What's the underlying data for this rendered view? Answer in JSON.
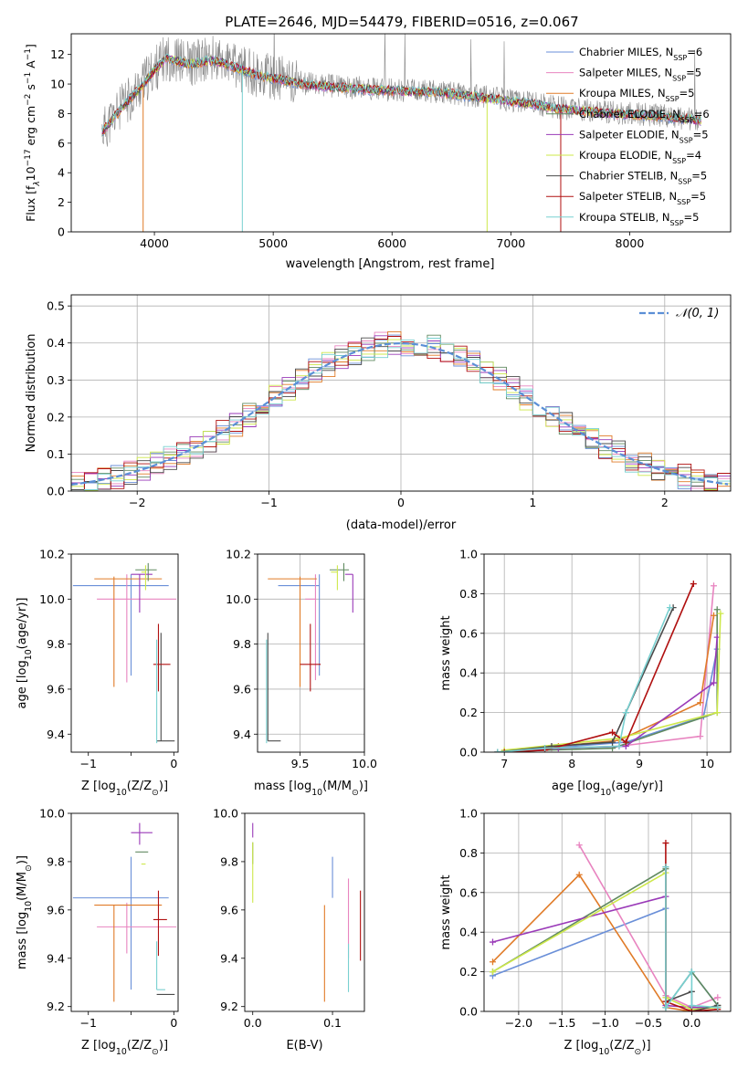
{
  "figure_title": "PLATE=2646, MJD=54479, FIBERID=0516, z=0.067",
  "colors": {
    "cm": "#6a8fd8",
    "sm": "#e884c0",
    "km": "#e07b28",
    "ce": "#608a60",
    "se": "#9a3ab8",
    "ke": "#cde84a",
    "cs": "#4a4a4a",
    "ss": "#b01010",
    "ks": "#78d0d0",
    "gauss": "#5b8fd6",
    "grid": "#b0b0b0"
  },
  "chart_data": [
    {
      "id": "spectrum",
      "type": "line",
      "title": "",
      "xlabel": "wavelength [Angstrom, rest frame]",
      "ylabel_parts": [
        "Flux [f",
        "λ",
        "10",
        "−17",
        " erg cm",
        "−2",
        " s",
        "−1",
        " A",
        "−1",
        "]"
      ],
      "xlim": [
        3300,
        8850
      ],
      "ylim": [
        0,
        13.4
      ],
      "xticks": [
        4000,
        5000,
        6000,
        7000,
        8000
      ],
      "yticks": [
        0,
        2,
        4,
        6,
        8,
        10,
        12
      ],
      "grid": false,
      "legend_position": "top-right",
      "legend": [
        {
          "key": "cm",
          "label": "Chabrier MILES, N",
          "sub": "SSP",
          "tail": "=6"
        },
        {
          "key": "sm",
          "label": "Salpeter MILES, N",
          "sub": "SSP",
          "tail": "=5"
        },
        {
          "key": "km",
          "label": "Kroupa MILES, N",
          "sub": "SSP",
          "tail": "=5"
        },
        {
          "key": "ce",
          "label": "Chabrier ELODIE, N",
          "sub": "SSP",
          "tail": "=6"
        },
        {
          "key": "se",
          "label": "Salpeter ELODIE, N",
          "sub": "SSP",
          "tail": "=5"
        },
        {
          "key": "ke",
          "label": "Kroupa ELODIE, N",
          "sub": "SSP",
          "tail": "=4"
        },
        {
          "key": "cs",
          "label": "Chabrier STELIB, N",
          "sub": "SSP",
          "tail": "=5"
        },
        {
          "key": "ss",
          "label": "Salpeter STELIB, N",
          "sub": "SSP",
          "tail": "=5"
        },
        {
          "key": "ks",
          "label": "Kroupa STELIB, N",
          "sub": "SSP",
          "tail": "=5"
        }
      ],
      "continuum_x": [
        3560,
        3700,
        3900,
        4000,
        4100,
        4300,
        4500,
        4700,
        4900,
        5100,
        5300,
        5600,
        6000,
        6400,
        6800,
        7200,
        7400,
        7800,
        8200,
        8600
      ],
      "continuum_y": [
        6.8,
        8.2,
        10.0,
        11.0,
        11.8,
        11.4,
        11.7,
        11.1,
        10.6,
        10.3,
        10.0,
        9.8,
        9.6,
        9.5,
        9.1,
        8.7,
        8.4,
        8.1,
        7.9,
        7.6
      ],
      "dips": [
        {
          "x": 3905,
          "y": 0,
          "key": "km"
        },
        {
          "x": 4740,
          "y": 0,
          "key": "ks"
        },
        {
          "x": 6800,
          "y": 0,
          "key": "ke"
        },
        {
          "x": 7420,
          "y": 0,
          "key": "ss"
        }
      ]
    },
    {
      "id": "residuals",
      "type": "histogram",
      "title": "",
      "xlabel": "(data-model)/error",
      "ylabel": "Normed distribution",
      "xlim": [
        -2.5,
        2.5
      ],
      "ylim": [
        0,
        0.53
      ],
      "xticks": [
        -2,
        -1,
        0,
        1,
        2
      ],
      "yticks": [
        0.0,
        0.1,
        0.2,
        0.3,
        0.4,
        0.5
      ],
      "grid": true,
      "legend_position": "top-right",
      "gauss_label": "𝒩(0, 1)"
    },
    {
      "id": "age-vs-z",
      "type": "errorbar",
      "xlabel_parts": [
        "Z [log",
        "10",
        "(Z/Z",
        "⊙",
        ")]"
      ],
      "ylabel_parts": [
        "age  [log",
        "10",
        "(age/yr)]"
      ],
      "xlim": [
        -1.2,
        0.05
      ],
      "ylim": [
        9.32,
        10.2
      ],
      "xticks": [
        -1,
        -0.5,
        0
      ],
      "xticklabels": [
        "−1",
        "",
        "0"
      ],
      "yticks": [
        9.4,
        9.6,
        9.8,
        10.0,
        10.2
      ],
      "grid": false,
      "points": [
        {
          "key": "cm",
          "x": -0.5,
          "y": 10.06,
          "xerr": [
            0.68,
            0.44
          ],
          "yerr": [
            0.4,
            0.05
          ]
        },
        {
          "key": "sm",
          "x": -0.55,
          "y": 10.0,
          "xerr": [
            0.35,
            0.58
          ],
          "yerr": [
            0.37,
            0.11
          ]
        },
        {
          "key": "km",
          "x": -0.7,
          "y": 10.09,
          "xerr": [
            0.23,
            0.56
          ],
          "yerr": [
            0.48,
            0.01
          ]
        },
        {
          "key": "ce",
          "x": -0.3,
          "y": 10.13,
          "xerr": [
            0.15,
            0.1
          ],
          "yerr": [
            0.05,
            0.03
          ]
        },
        {
          "key": "se",
          "x": -0.4,
          "y": 10.11,
          "xerr": [
            0.1,
            0.15
          ],
          "yerr": [
            0.17,
            0.0
          ]
        },
        {
          "key": "ke",
          "x": -0.33,
          "y": 10.12,
          "xerr": [
            0.05,
            0.0
          ],
          "yerr": [
            0.08,
            0.03
          ]
        },
        {
          "key": "cs",
          "x": -0.15,
          "y": 9.37,
          "xerr": [
            0.05,
            0.16
          ],
          "yerr": [
            0.0,
            0.48
          ]
        },
        {
          "key": "ss",
          "x": -0.18,
          "y": 9.71,
          "xerr": [
            0.06,
            0.14
          ],
          "yerr": [
            0.12,
            0.18
          ]
        },
        {
          "key": "ks",
          "x": -0.2,
          "y": 9.36,
          "xerr": [
            0.0,
            0.0
          ],
          "yerr": [
            0.0,
            0.46
          ]
        }
      ]
    },
    {
      "id": "age-vs-mass",
      "type": "errorbar",
      "xlabel_parts": [
        "mass [log",
        "10",
        "(M/M",
        "⊙",
        ")]"
      ],
      "ylabel_parts": [],
      "xlim": [
        9.17,
        10.0
      ],
      "ylim": [
        9.32,
        10.2
      ],
      "xticks": [
        9.5,
        10.0
      ],
      "xticklabels": [
        "9.5",
        "10.0"
      ],
      "yticks": [
        9.4,
        9.6,
        9.8,
        10.0,
        10.2
      ],
      "grid": true,
      "points": [
        {
          "key": "cm",
          "x": 9.65,
          "y": 10.06,
          "xerr": [
            0.32,
            0.0
          ],
          "yerr": [
            0.4,
            0.05
          ]
        },
        {
          "key": "sm",
          "x": 9.62,
          "y": 10.0,
          "xerr": [
            0.08,
            0.0
          ],
          "yerr": [
            0.36,
            0.11
          ]
        },
        {
          "key": "km",
          "x": 9.5,
          "y": 10.09,
          "xerr": [
            0.25,
            0.13
          ],
          "yerr": [
            0.48,
            0.01
          ]
        },
        {
          "key": "ce",
          "x": 9.84,
          "y": 10.13,
          "xerr": [
            0.11,
            0.04
          ],
          "yerr": [
            0.05,
            0.03
          ]
        },
        {
          "key": "se",
          "x": 9.91,
          "y": 10.11,
          "xerr": [
            0.06,
            0.0
          ],
          "yerr": [
            0.17,
            0.0
          ]
        },
        {
          "key": "ke",
          "x": 9.79,
          "y": 10.12,
          "xerr": [
            0.05,
            0.0
          ],
          "yerr": [
            0.08,
            0.03
          ]
        },
        {
          "key": "cs",
          "x": 9.25,
          "y": 9.37,
          "xerr": [
            0.0,
            0.1
          ],
          "yerr": [
            0.0,
            0.48
          ]
        },
        {
          "key": "ss",
          "x": 9.58,
          "y": 9.71,
          "xerr": [
            0.08,
            0.08
          ],
          "yerr": [
            0.12,
            0.18
          ]
        },
        {
          "key": "ks",
          "x": 9.24,
          "y": 9.36,
          "xerr": [
            0.0,
            0.0
          ],
          "yerr": [
            0.0,
            0.46
          ]
        }
      ]
    },
    {
      "id": "weight-vs-age",
      "type": "line",
      "xlabel_parts": [
        "age  [log",
        "10",
        "(age/yr)]"
      ],
      "ylabel": "mass weight",
      "xlim": [
        6.7,
        10.35
      ],
      "ylim": [
        0,
        1.0
      ],
      "xticks": [
        7,
        8,
        9,
        10
      ],
      "yticks": [
        0.0,
        0.2,
        0.4,
        0.6,
        0.8,
        1.0
      ],
      "grid": true,
      "series": [
        {
          "key": "cm",
          "x": [
            6.9,
            7.6,
            8.8,
            9.95,
            10.15
          ],
          "y": [
            0.0,
            0.02,
            0.05,
            0.18,
            0.52
          ]
        },
        {
          "key": "sm",
          "x": [
            6.9,
            7.7,
            8.7,
            9.9,
            10.1
          ],
          "y": [
            0.0,
            0.02,
            0.03,
            0.08,
            0.84
          ]
        },
        {
          "key": "km",
          "x": [
            7.0,
            7.8,
            8.7,
            9.9,
            10.1
          ],
          "y": [
            0.0,
            0.03,
            0.06,
            0.25,
            0.69
          ]
        },
        {
          "key": "ce",
          "x": [
            6.9,
            7.6,
            8.6,
            10.15,
            10.15
          ],
          "y": [
            0.0,
            0.01,
            0.02,
            0.2,
            0.72
          ]
        },
        {
          "key": "se",
          "x": [
            7.0,
            7.8,
            8.8,
            10.1,
            10.15
          ],
          "y": [
            0.0,
            0.02,
            0.03,
            0.35,
            0.58
          ]
        },
        {
          "key": "ke",
          "x": [
            7.0,
            8.7,
            10.15,
            10.2
          ],
          "y": [
            0.01,
            0.07,
            0.2,
            0.7
          ]
        },
        {
          "key": "cs",
          "x": [
            6.9,
            7.7,
            8.6,
            8.8,
            9.5
          ],
          "y": [
            0.0,
            0.03,
            0.05,
            0.2,
            0.73
          ]
        },
        {
          "key": "ss",
          "x": [
            7.0,
            7.6,
            8.6,
            8.8,
            9.8
          ],
          "y": [
            0.0,
            0.01,
            0.1,
            0.05,
            0.85
          ]
        },
        {
          "key": "ks",
          "x": [
            6.9,
            7.6,
            8.7,
            8.8,
            9.45
          ],
          "y": [
            0.0,
            0.02,
            0.03,
            0.2,
            0.73
          ]
        }
      ]
    },
    {
      "id": "mass-vs-z",
      "type": "errorbar",
      "xlabel_parts": [
        "Z [log",
        "10",
        "(Z/Z",
        "⊙",
        ")]"
      ],
      "ylabel_parts": [
        "mass [log",
        "10",
        "(M/M",
        "⊙",
        ")]"
      ],
      "xlim": [
        -1.2,
        0.05
      ],
      "ylim": [
        9.18,
        10.0
      ],
      "xticks": [
        -1,
        -0.5,
        0
      ],
      "xticklabels": [
        "−1",
        "",
        "0"
      ],
      "yticks": [
        9.2,
        9.4,
        9.6,
        9.8,
        10.0
      ],
      "grid": false,
      "points": [
        {
          "key": "cm",
          "x": -0.5,
          "y": 9.65,
          "xerr": [
            0.68,
            0.44
          ],
          "yerr": [
            0.38,
            0.17
          ]
        },
        {
          "key": "sm",
          "x": -0.55,
          "y": 9.53,
          "xerr": [
            0.35,
            0.58
          ],
          "yerr": [
            0.11,
            0.1
          ]
        },
        {
          "key": "km",
          "x": -0.7,
          "y": 9.62,
          "xerr": [
            0.23,
            0.56
          ],
          "yerr": [
            0.4,
            0.0
          ]
        },
        {
          "key": "ce",
          "x": -0.3,
          "y": 9.84,
          "xerr": [
            0.15,
            0.0
          ],
          "yerr": [
            0.0,
            0.0
          ]
        },
        {
          "key": "se",
          "x": -0.4,
          "y": 9.92,
          "xerr": [
            0.1,
            0.15
          ],
          "yerr": [
            0.05,
            0.04
          ]
        },
        {
          "key": "ke",
          "x": -0.33,
          "y": 9.79,
          "xerr": [
            0.05,
            0.0
          ],
          "yerr": [
            0.0,
            0.0
          ]
        },
        {
          "key": "cs",
          "x": -0.15,
          "y": 9.25,
          "xerr": [
            0.05,
            0.16
          ],
          "yerr": [
            0.0,
            0.0
          ]
        },
        {
          "key": "ss",
          "x": -0.18,
          "y": 9.56,
          "xerr": [
            0.06,
            0.1
          ],
          "yerr": [
            0.15,
            0.12
          ]
        },
        {
          "key": "ks",
          "x": -0.2,
          "y": 9.27,
          "xerr": [
            0.0,
            0.1
          ],
          "yerr": [
            0.0,
            0.2
          ]
        }
      ]
    },
    {
      "id": "mass-vs-ebv",
      "type": "errorbar",
      "xlabel": "E(B-V)",
      "ylabel_parts": [],
      "xlim": [
        -0.01,
        0.14
      ],
      "ylim": [
        9.18,
        10.0
      ],
      "xticks": [
        0.0,
        0.1
      ],
      "xticklabels": [
        "0.0",
        "0.1"
      ],
      "yticks": [
        9.2,
        9.4,
        9.6,
        9.8,
        10.0
      ],
      "grid": false,
      "points": [
        {
          "key": "cm",
          "x": 0.1,
          "y": 9.65,
          "xerr": [
            0,
            0
          ],
          "yerr": [
            0.0,
            0.17
          ]
        },
        {
          "key": "sm",
          "x": 0.12,
          "y": 9.53,
          "xerr": [
            0,
            0
          ],
          "yerr": [
            0.13,
            0.2
          ]
        },
        {
          "key": "km",
          "x": 0.09,
          "y": 9.42,
          "xerr": [
            0,
            0
          ],
          "yerr": [
            0.2,
            0.2
          ]
        },
        {
          "key": "ce",
          "x": 0.0,
          "y": 9.84,
          "xerr": [
            0,
            0
          ],
          "yerr": [
            0.05,
            0.04
          ]
        },
        {
          "key": "se",
          "x": 0.0,
          "y": 9.92,
          "xerr": [
            0,
            0
          ],
          "yerr": [
            0.02,
            0.04
          ]
        },
        {
          "key": "ke",
          "x": 0.0,
          "y": 9.75,
          "xerr": [
            0,
            0
          ],
          "yerr": [
            0.12,
            0.13
          ]
        },
        {
          "key": "cs",
          "x": 0.12,
          "y": 9.25,
          "xerr": [
            0,
            0
          ],
          "yerr": [
            0.0,
            0.0
          ]
        },
        {
          "key": "ss",
          "x": 0.135,
          "y": 9.53,
          "xerr": [
            0,
            0
          ],
          "yerr": [
            0.14,
            0.15
          ]
        },
        {
          "key": "ks",
          "x": 0.12,
          "y": 9.36,
          "xerr": [
            0,
            0
          ],
          "yerr": [
            0.1,
            0.1
          ]
        }
      ]
    },
    {
      "id": "weight-vs-z",
      "type": "line",
      "xlabel_parts": [
        "Z [log",
        "10",
        "(Z/Z",
        "⊙",
        ")]"
      ],
      "ylabel": "mass weight",
      "xlim": [
        -2.4,
        0.45
      ],
      "ylim": [
        0,
        1.0
      ],
      "xticks": [
        -2.0,
        -1.5,
        -1.0,
        -0.5,
        0.0
      ],
      "xticklabels": [
        "−2.0",
        "−1.5",
        "−1.0",
        "−0.5",
        "0.0"
      ],
      "yticks": [
        0.0,
        0.2,
        0.4,
        0.6,
        0.8,
        1.0
      ],
      "grid": true,
      "series": [
        {
          "key": "cm",
          "x": [
            -2.3,
            -0.3,
            -0.3,
            0.0,
            0.3
          ],
          "y": [
            0.18,
            0.52,
            0.02,
            0.2,
            0.03
          ]
        },
        {
          "key": "sm",
          "x": [
            -1.3,
            -0.3,
            0.0,
            0.3
          ],
          "y": [
            0.84,
            0.08,
            0.02,
            0.07
          ]
        },
        {
          "key": "km",
          "x": [
            -2.3,
            -1.3,
            -0.3,
            0.0,
            0.3
          ],
          "y": [
            0.25,
            0.69,
            0.02,
            0.0,
            0.03
          ]
        },
        {
          "key": "ce",
          "x": [
            -2.3,
            -0.3,
            -0.3,
            0.0,
            0.3
          ],
          "y": [
            0.2,
            0.72,
            0.02,
            0.2,
            0.03
          ]
        },
        {
          "key": "se",
          "x": [
            -2.3,
            -0.3,
            -0.3,
            0.0,
            0.3
          ],
          "y": [
            0.35,
            0.58,
            0.03,
            0.02,
            0.02
          ]
        },
        {
          "key": "ke",
          "x": [
            -2.3,
            -0.3,
            -0.3,
            0.0,
            0.3
          ],
          "y": [
            0.2,
            0.7,
            0.07,
            0.01,
            0.02
          ]
        },
        {
          "key": "cs",
          "x": [
            -0.3,
            -0.3,
            0.0,
            0.0,
            0.3
          ],
          "y": [
            0.73,
            0.05,
            0.1,
            0.0,
            0.03
          ]
        },
        {
          "key": "ss",
          "x": [
            -0.3,
            -0.3,
            0.0,
            0.3
          ],
          "y": [
            0.85,
            0.05,
            0.0,
            0.01
          ]
        },
        {
          "key": "ks",
          "x": [
            -0.3,
            -0.3,
            0.0,
            0.0,
            0.3
          ],
          "y": [
            0.73,
            0.02,
            0.2,
            0.03,
            0.02
          ]
        }
      ]
    }
  ]
}
